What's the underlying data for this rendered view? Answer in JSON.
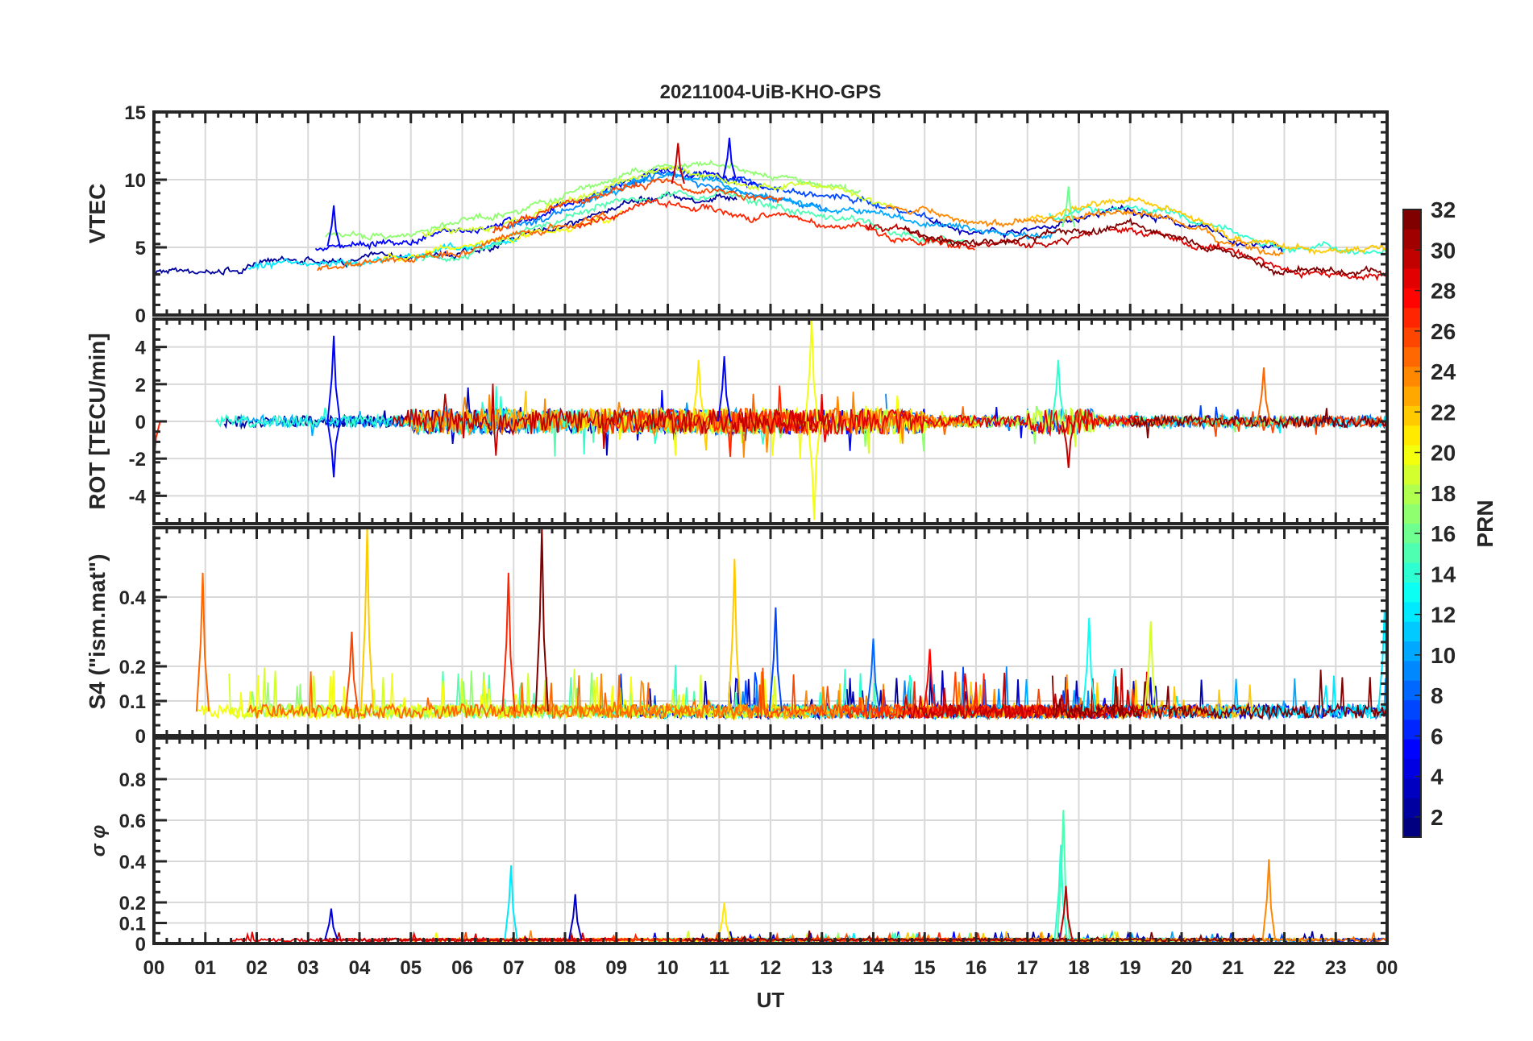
{
  "chart_data": {
    "type": "line",
    "title": "20211004-UiB-KHO-GPS",
    "xlabel": "UT",
    "x_ticks": [
      "00",
      "01",
      "02",
      "03",
      "04",
      "05",
      "06",
      "07",
      "08",
      "09",
      "10",
      "11",
      "12",
      "13",
      "14",
      "15",
      "16",
      "17",
      "18",
      "19",
      "20",
      "21",
      "22",
      "23",
      "00"
    ],
    "xlim": [
      0,
      24
    ],
    "grid": true,
    "colorbar": {
      "label": "PRN",
      "range": [
        1,
        32
      ],
      "ticks": [
        "2",
        "4",
        "6",
        "8",
        "10",
        "12",
        "14",
        "16",
        "18",
        "20",
        "22",
        "24",
        "26",
        "28",
        "30",
        "32"
      ],
      "colormap": "jet"
    },
    "panels": [
      {
        "ylabel": "VTEC",
        "ylim": [
          0,
          15
        ],
        "yticks": [
          "0",
          "5",
          "10",
          "15"
        ],
        "tick_values": [
          0,
          5,
          10,
          15
        ],
        "mean_profile_hourly": [
          3.8,
          4.0,
          4.3,
          4.6,
          4.7,
          4.9,
          5.6,
          6.5,
          7.5,
          8.8,
          9.6,
          9.3,
          8.6,
          8.0,
          7.4,
          6.7,
          6.0,
          6.1,
          6.6,
          7.2,
          6.2,
          4.8,
          4.0,
          3.8,
          3.8
        ],
        "peaks": [
          {
            "t": 11.2,
            "v": 13.1,
            "prn": 5
          },
          {
            "t": 10.2,
            "v": 12.7,
            "prn": 30
          },
          {
            "t": 3.5,
            "v": 8.1,
            "prn": 5
          },
          {
            "t": 17.8,
            "v": 9.5,
            "prn": 16
          }
        ]
      },
      {
        "ylabel": "ROT [TECU/min]",
        "ylim": [
          -5.5,
          5.5
        ],
        "yticks": [
          "-4",
          "-2",
          "0",
          "2",
          "4"
        ],
        "tick_values": [
          -4,
          -2,
          0,
          2,
          4
        ],
        "spikes": [
          {
            "t": 3.5,
            "v": 4.6,
            "prn": 5
          },
          {
            "t": 3.5,
            "v": -3.0,
            "prn": 5
          },
          {
            "t": 12.8,
            "v": 5.5,
            "prn": 20
          },
          {
            "t": 12.85,
            "v": -5.3,
            "prn": 20
          },
          {
            "t": 11.1,
            "v": 3.5,
            "prn": 5
          },
          {
            "t": 17.6,
            "v": 3.3,
            "prn": 14
          },
          {
            "t": 17.8,
            "v": -2.5,
            "prn": 30
          },
          {
            "t": 21.6,
            "v": 2.9,
            "prn": 25
          },
          {
            "t": 0.0,
            "v": -2.2,
            "prn": 27
          },
          {
            "t": 10.6,
            "v": 3.3,
            "prn": 21
          }
        ]
      },
      {
        "ylabel": "S4 (\"ism.mat\")",
        "ylim": [
          0,
          0.6
        ],
        "yticks": [
          "0",
          "0.1",
          "0.2",
          "0.4"
        ],
        "tick_values": [
          0,
          0.1,
          0.2,
          0.4
        ],
        "spikes": [
          {
            "t": 4.15,
            "v": 0.6,
            "prn": 22
          },
          {
            "t": 7.55,
            "v": 0.6,
            "prn": 32
          },
          {
            "t": 6.9,
            "v": 0.47,
            "prn": 27
          },
          {
            "t": 0.95,
            "v": 0.47,
            "prn": 25
          },
          {
            "t": 11.3,
            "v": 0.51,
            "prn": 22
          },
          {
            "t": 3.85,
            "v": 0.3,
            "prn": 26
          },
          {
            "t": 12.1,
            "v": 0.37,
            "prn": 7
          },
          {
            "t": 18.2,
            "v": 0.34,
            "prn": 13
          },
          {
            "t": 19.4,
            "v": 0.33,
            "prn": 19
          },
          {
            "t": 23.95,
            "v": 0.36,
            "prn": 12
          },
          {
            "t": 14.0,
            "v": 0.28,
            "prn": 8
          },
          {
            "t": 15.1,
            "v": 0.25,
            "prn": 28
          }
        ]
      },
      {
        "ylabel": "σ φ",
        "ylim": [
          0,
          1
        ],
        "yticks": [
          "0",
          "0.1",
          "0.2",
          "0.4",
          "0.6",
          "0.8"
        ],
        "tick_values": [
          0,
          0.1,
          0.2,
          0.4,
          0.6,
          0.8
        ],
        "spikes": [
          {
            "t": 17.7,
            "v": 0.65,
            "prn": 15
          },
          {
            "t": 17.65,
            "v": 0.48,
            "prn": 14
          },
          {
            "t": 17.75,
            "v": 0.28,
            "prn": 30
          },
          {
            "t": 21.7,
            "v": 0.41,
            "prn": 24
          },
          {
            "t": 6.95,
            "v": 0.38,
            "prn": 12
          },
          {
            "t": 8.2,
            "v": 0.24,
            "prn": 3
          },
          {
            "t": 11.1,
            "v": 0.2,
            "prn": 21
          },
          {
            "t": 3.45,
            "v": 0.17,
            "prn": 4
          }
        ]
      }
    ]
  }
}
